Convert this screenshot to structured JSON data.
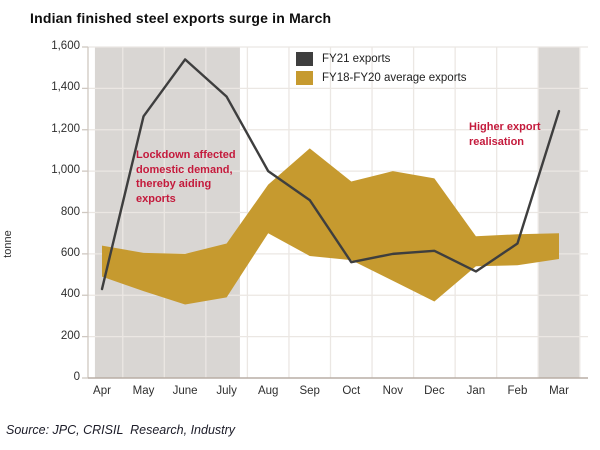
{
  "title": "Indian finished steel exports surge in March",
  "source": "Source: JPC, CRISIL  Research, Industry",
  "ylabel": "tonne",
  "legend": {
    "fy21_label": "FY21 exports",
    "avg_label": "FY18-FY20 average exports"
  },
  "annotations": {
    "lockdown": [
      "Lockdown affected",
      "domestic demand,",
      "thereby aiding",
      "exports"
    ],
    "higher": [
      "Higher export",
      "realisation"
    ]
  },
  "colors": {
    "line": "#3e3e3e",
    "band": "#c69a2f",
    "shaded": "#d9d6d3",
    "grid": "#ebe7e3",
    "axis_y": "#cfc8c1",
    "axis_x": "#b9aea5",
    "annotation_red": "#c41a3c",
    "tick_text": "#2e2e2e"
  },
  "chart_data": {
    "type": "line",
    "title": "Indian finished steel exports surge in March",
    "xlabel": "",
    "ylabel": "tonne",
    "categories": [
      "Apr",
      "May",
      "June",
      "July",
      "Aug",
      "Sep",
      "Oct",
      "Nov",
      "Dec",
      "Jan",
      "Feb",
      "Mar"
    ],
    "series": [
      {
        "name": "FY21 exports",
        "type": "line",
        "color": "#3e3e3e",
        "values": [
          430,
          1265,
          1540,
          1360,
          1000,
          860,
          560,
          600,
          615,
          515,
          650,
          1290
        ]
      },
      {
        "name": "FY18-FY20 average exports",
        "type": "band",
        "color": "#c69a2f",
        "upper": [
          640,
          605,
          600,
          650,
          935,
          1110,
          950,
          1000,
          965,
          685,
          695,
          700
        ],
        "lower": [
          490,
          420,
          355,
          390,
          700,
          590,
          570,
          470,
          370,
          540,
          545,
          575
        ]
      }
    ],
    "ylim": [
      0,
      1600
    ],
    "ytick_step": 200,
    "ytick_labels": [
      "0",
      "200",
      "400",
      "600",
      "800",
      "1,000",
      "1,200",
      "1,400",
      "1,600"
    ],
    "grid": true,
    "legend_position": "top-center-inside",
    "shaded_regions": [
      {
        "name": "lockdown-period",
        "from_month_frac": -0.17,
        "to_month_frac": 3.32
      },
      {
        "name": "march-period",
        "from_month_frac": 10.5,
        "to_month_frac": 11.49
      }
    ]
  }
}
